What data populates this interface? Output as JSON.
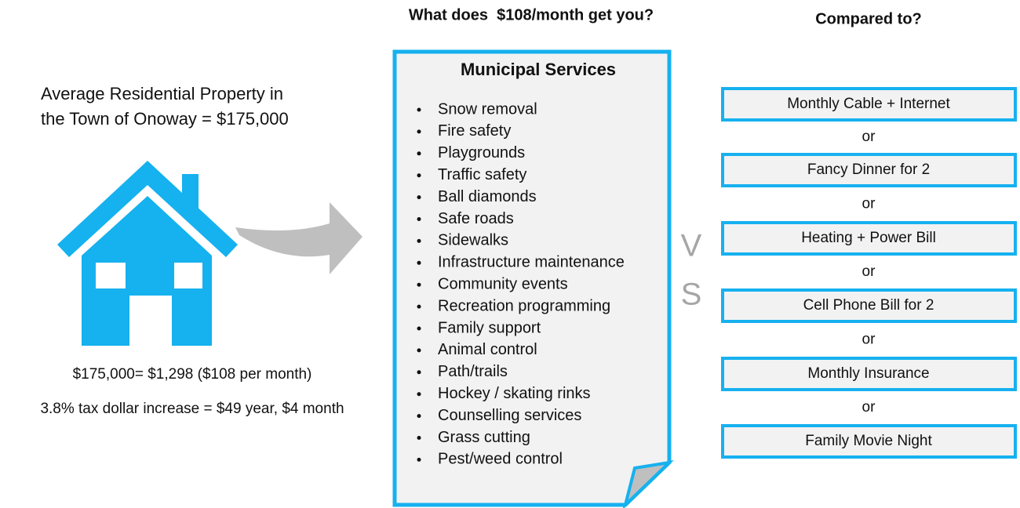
{
  "header": {
    "question": "What does  $108/month get you?",
    "compare": "Compared to?"
  },
  "property": {
    "lines": [
      "Average Residential Property in",
      "the Town of Onoway = $175,000"
    ]
  },
  "calculations": [
    "$175,000= $1,298 ($108 per month)",
    "3.8% tax dollar increase = $49 year, $4 month"
  ],
  "services": {
    "title": "Municipal Services",
    "items": [
      "Snow removal",
      "Fire safety",
      "Playgrounds",
      "Traffic safety",
      "Ball diamonds",
      "Safe roads",
      "Sidewalks",
      "Infrastructure maintenance",
      "Community events",
      "Recreation programming",
      "Family support",
      "Animal control",
      "Path/trails",
      "Hockey / skating rinks",
      "Counselling services",
      "Grass cutting",
      "Pest/weed control"
    ]
  },
  "versus": [
    "V",
    "S"
  ],
  "comparisons": [
    "Monthly Cable + Internet",
    "Fancy Dinner for 2",
    "Heating + Power Bill",
    "Cell Phone Bill for 2",
    "Monthly Insurance",
    "Family Movie Night"
  ],
  "separators": [
    "or",
    "or",
    "or",
    "or",
    "or"
  ]
}
